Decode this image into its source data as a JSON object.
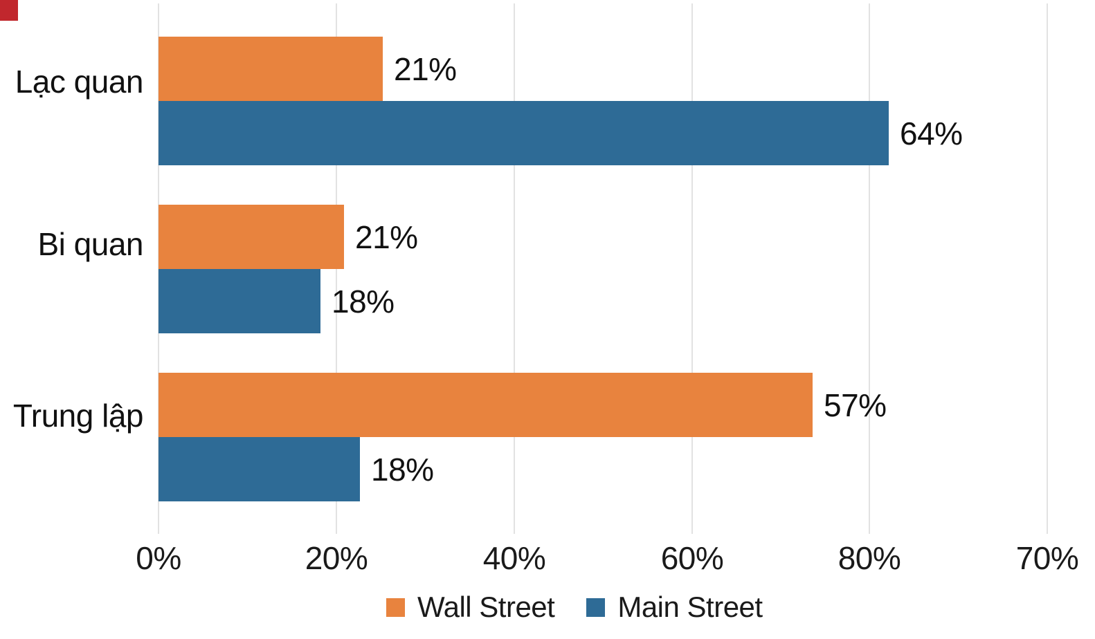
{
  "page": {
    "background": "#ffffff"
  },
  "corner_marker": {
    "color": "#C1272D"
  },
  "colors": {
    "grid": "#E2E2E2",
    "text": "#111111"
  },
  "chart_data": {
    "type": "bar",
    "orientation": "horizontal",
    "title": "",
    "xlabel": "",
    "ylabel": "",
    "grid": true,
    "categories": [
      "Lạc quan",
      "Bi quan",
      "Trung lập"
    ],
    "series": [
      {
        "name": "Wall Street",
        "color": "#E8833E",
        "values": [
          21,
          21,
          57
        ],
        "value_labels": [
          "21%",
          "21%",
          "57%"
        ],
        "rendered_axis_pct": [
          25.2,
          20.9,
          73.6
        ]
      },
      {
        "name": "Main Street",
        "color": "#2E6B96",
        "values": [
          64,
          18,
          18
        ],
        "value_labels": [
          "64%",
          "18%",
          "18%"
        ],
        "rendered_axis_pct": [
          82.2,
          18.2,
          22.7
        ]
      }
    ],
    "x_axis": {
      "tick_labels": [
        "0%",
        "20%",
        "40%",
        "60%",
        "80%",
        "70%"
      ],
      "note": "tick labels as printed in source image; bar lengths drawn per rendered_axis_pct"
    },
    "legend": {
      "position": "bottom",
      "entries": [
        "Wall Street",
        "Main Street"
      ]
    }
  }
}
